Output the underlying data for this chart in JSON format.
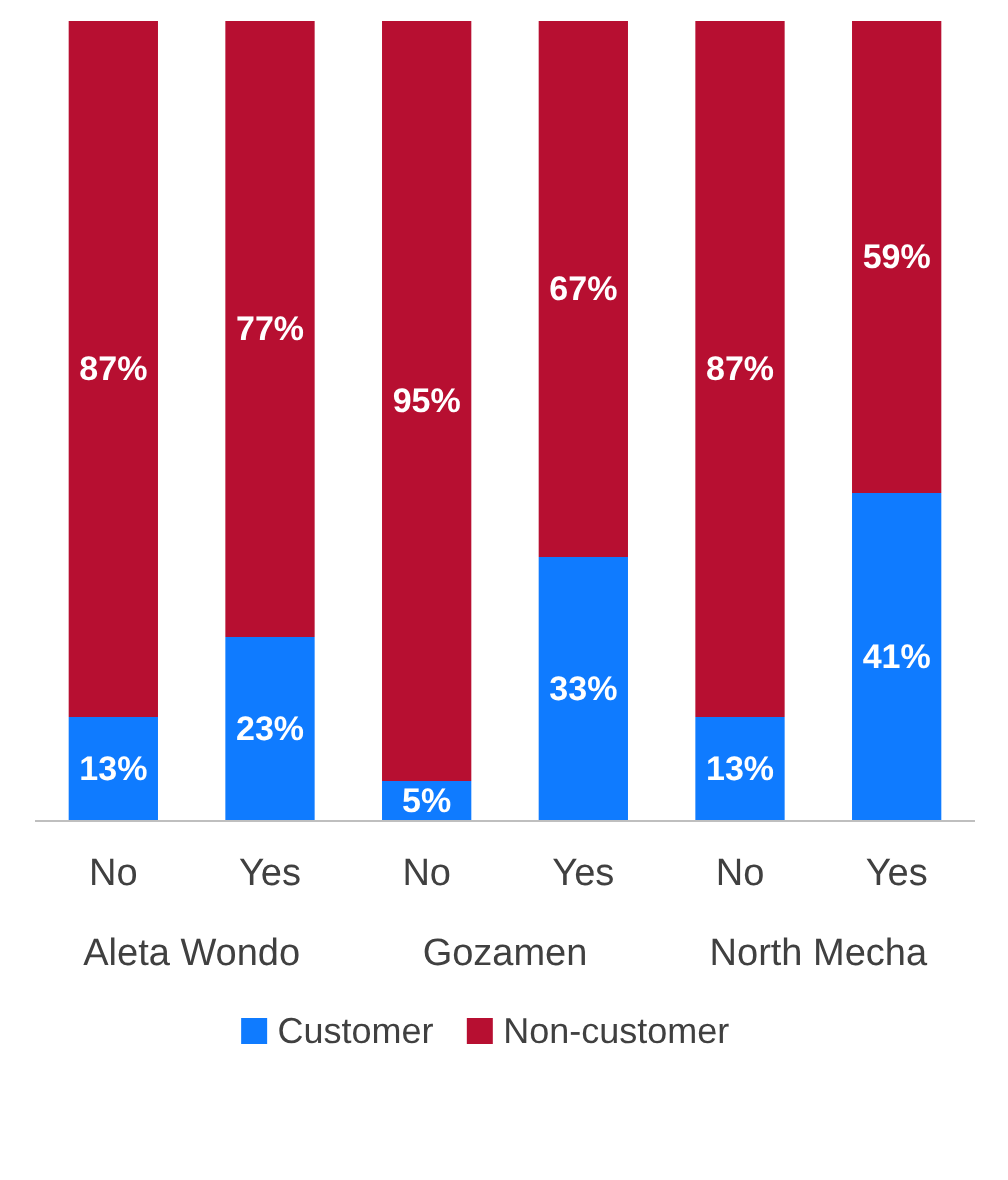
{
  "chart_data": {
    "type": "bar",
    "stacked": true,
    "categories": [
      "No",
      "Yes",
      "No",
      "Yes",
      "No",
      "Yes"
    ],
    "series": [
      {
        "name": "Customer",
        "color": "#0f7bff",
        "values": [
          13,
          23,
          5,
          33,
          13,
          41
        ],
        "value_labels": [
          "13%",
          "23%",
          "5%",
          "33%",
          "13%",
          "41%"
        ]
      },
      {
        "name": "Non-customer",
        "color": "#b70f31",
        "values": [
          87,
          77,
          95,
          67,
          87,
          59
        ],
        "value_labels": [
          "87%",
          "77%",
          "95%",
          "67%",
          "87%",
          "59%"
        ]
      }
    ],
    "tick_labels": "x",
    "legend": "bottom",
    "grid": false,
    "annotations": [
      "Aleta Wondo",
      "Gozamen",
      "North Mecha"
    ]
  }
}
